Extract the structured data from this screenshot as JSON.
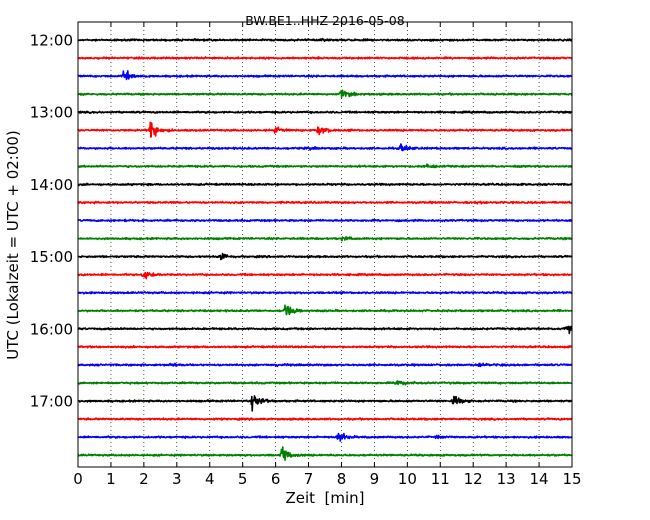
{
  "chart_data": {
    "type": "line",
    "title": "BW.BE1..HHZ 2016-05-08",
    "xlabel": "Zeit  [min]",
    "ylabel": "UTC (Lokalzeit = UTC + 02:00)",
    "xlim": [
      0,
      15
    ],
    "xticks": [
      0,
      1,
      2,
      3,
      4,
      5,
      6,
      7,
      8,
      9,
      10,
      11,
      12,
      13,
      14,
      15
    ],
    "ytick_labels": [
      "12:00",
      "13:00",
      "14:00",
      "15:00",
      "16:00",
      "17:00"
    ],
    "grid": "vertical dotted at each minute",
    "colors": [
      "#000000",
      "#ff0000",
      "#0000ff",
      "#008000"
    ],
    "traces": [
      {
        "start": "12:00",
        "color": "#000000",
        "events": [
          {
            "t": 7.4,
            "amp": 0.15
          }
        ]
      },
      {
        "start": "12:15",
        "color": "#ff0000",
        "events": []
      },
      {
        "start": "12:30",
        "color": "#0000ff",
        "events": [
          {
            "t": 1.4,
            "amp": 0.7
          }
        ]
      },
      {
        "start": "12:45",
        "color": "#008000",
        "events": [
          {
            "t": 8.0,
            "amp": 0.6
          }
        ]
      },
      {
        "start": "13:00",
        "color": "#000000",
        "events": []
      },
      {
        "start": "13:15",
        "color": "#ff0000",
        "events": [
          {
            "t": 2.2,
            "amp": 1.0
          },
          {
            "t": 6.0,
            "amp": 0.4
          },
          {
            "t": 7.3,
            "amp": 0.6
          }
        ]
      },
      {
        "start": "13:30",
        "color": "#0000ff",
        "events": [
          {
            "t": 9.8,
            "amp": 0.5
          },
          {
            "t": 7.0,
            "amp": 0.15
          }
        ]
      },
      {
        "start": "13:45",
        "color": "#008000",
        "events": [
          {
            "t": 10.5,
            "amp": 0.35
          }
        ]
      },
      {
        "start": "14:00",
        "color": "#000000",
        "events": []
      },
      {
        "start": "14:15",
        "color": "#ff0000",
        "events": [
          {
            "t": 12.1,
            "amp": 0.15
          }
        ]
      },
      {
        "start": "14:30",
        "color": "#0000ff",
        "events": [
          {
            "t": 1.4,
            "amp": 0.15
          }
        ]
      },
      {
        "start": "14:45",
        "color": "#008000",
        "events": [
          {
            "t": 8.0,
            "amp": 0.35
          }
        ]
      },
      {
        "start": "15:00",
        "color": "#000000",
        "events": [
          {
            "t": 4.3,
            "amp": 0.5
          }
        ]
      },
      {
        "start": "15:15",
        "color": "#ff0000",
        "events": [
          {
            "t": 2.0,
            "amp": 0.55
          }
        ]
      },
      {
        "start": "15:30",
        "color": "#0000ff",
        "events": []
      },
      {
        "start": "15:45",
        "color": "#008000",
        "events": [
          {
            "t": 6.3,
            "amp": 0.7
          }
        ]
      },
      {
        "start": "16:00",
        "color": "#000000",
        "events": [
          {
            "t": 14.8,
            "amp": 0.65
          }
        ]
      },
      {
        "start": "16:15",
        "color": "#ff0000",
        "events": []
      },
      {
        "start": "16:30",
        "color": "#0000ff",
        "events": [
          {
            "t": 2.8,
            "amp": 0.2
          },
          {
            "t": 6.0,
            "amp": 0.2
          },
          {
            "t": 12.2,
            "amp": 0.3
          }
        ]
      },
      {
        "start": "16:45",
        "color": "#008000",
        "events": [
          {
            "t": 9.7,
            "amp": 0.45
          }
        ]
      },
      {
        "start": "17:00",
        "color": "#000000",
        "events": [
          {
            "t": 5.3,
            "amp": 1.0
          },
          {
            "t": 11.4,
            "amp": 0.6
          }
        ]
      },
      {
        "start": "17:15",
        "color": "#ff0000",
        "events": []
      },
      {
        "start": "17:30",
        "color": "#0000ff",
        "events": [
          {
            "t": 7.9,
            "amp": 0.65
          },
          {
            "t": 10.9,
            "amp": 0.15
          }
        ]
      },
      {
        "start": "17:45",
        "color": "#008000",
        "events": [
          {
            "t": 6.2,
            "amp": 0.8
          }
        ]
      }
    ]
  }
}
